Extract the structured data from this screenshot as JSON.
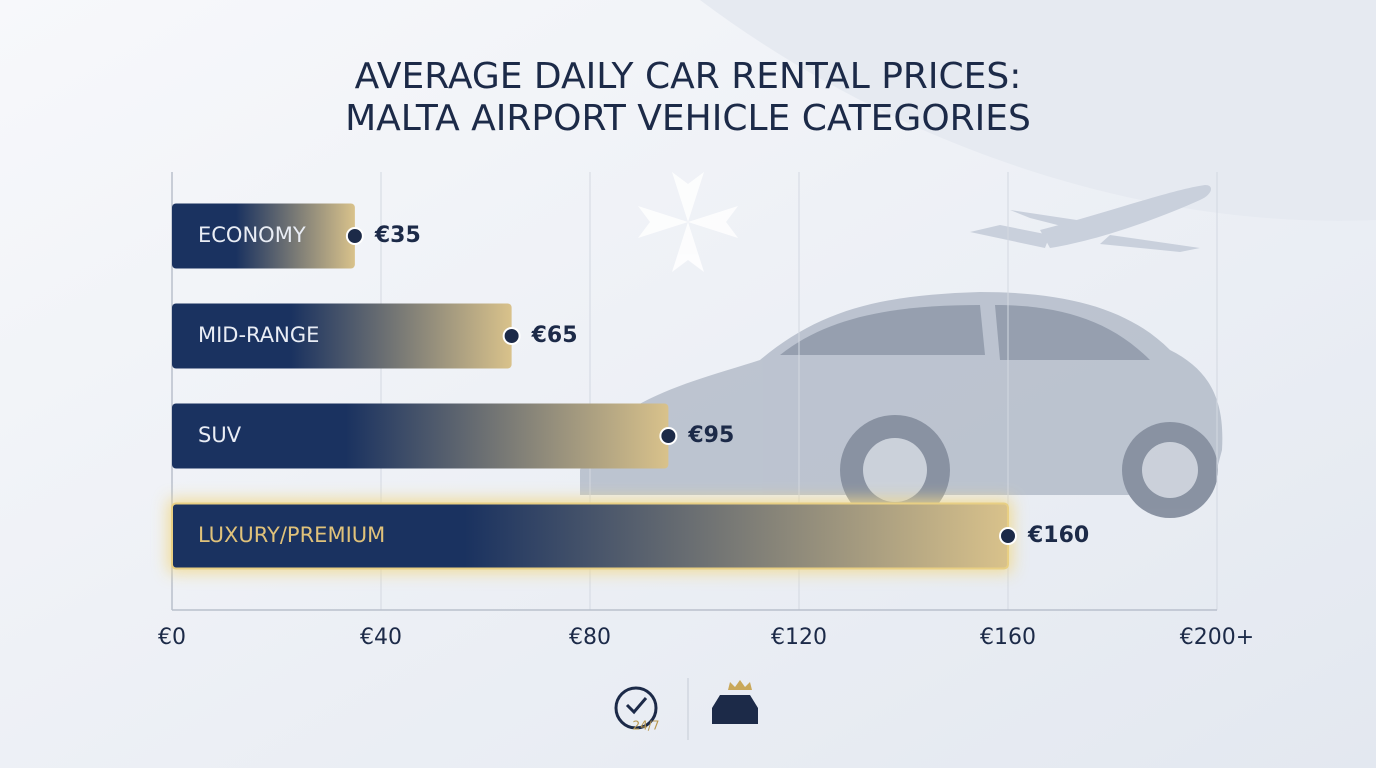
{
  "chart_data": {
    "type": "hbar",
    "title": [
      "AVERAGE DAILY CAR RENTAL PRICES:",
      "MALTA AIRPORT VEHICLE CATEGORIES"
    ],
    "categories": [
      "ECONOMY",
      "MID-RANGE",
      "SUV",
      "LUXURY/PREMIUM"
    ],
    "values": [
      35,
      65,
      95,
      160
    ],
    "value_labels": [
      "€35",
      "€65",
      "€95",
      "€160"
    ],
    "colors": [
      "#1a3260",
      "#d9c28b"
    ],
    "xlim": [
      0,
      200
    ],
    "xticks": [
      {
        "value": 0,
        "label": "€0"
      },
      {
        "value": 40,
        "label": "€40"
      },
      {
        "value": 80,
        "label": "€80"
      },
      {
        "value": 120,
        "label": "€120"
      },
      {
        "value": 160,
        "label": "€160"
      },
      {
        "value": 200,
        "label": "€200+"
      }
    ],
    "grid": true
  },
  "footer": {
    "badge": "24/7"
  }
}
